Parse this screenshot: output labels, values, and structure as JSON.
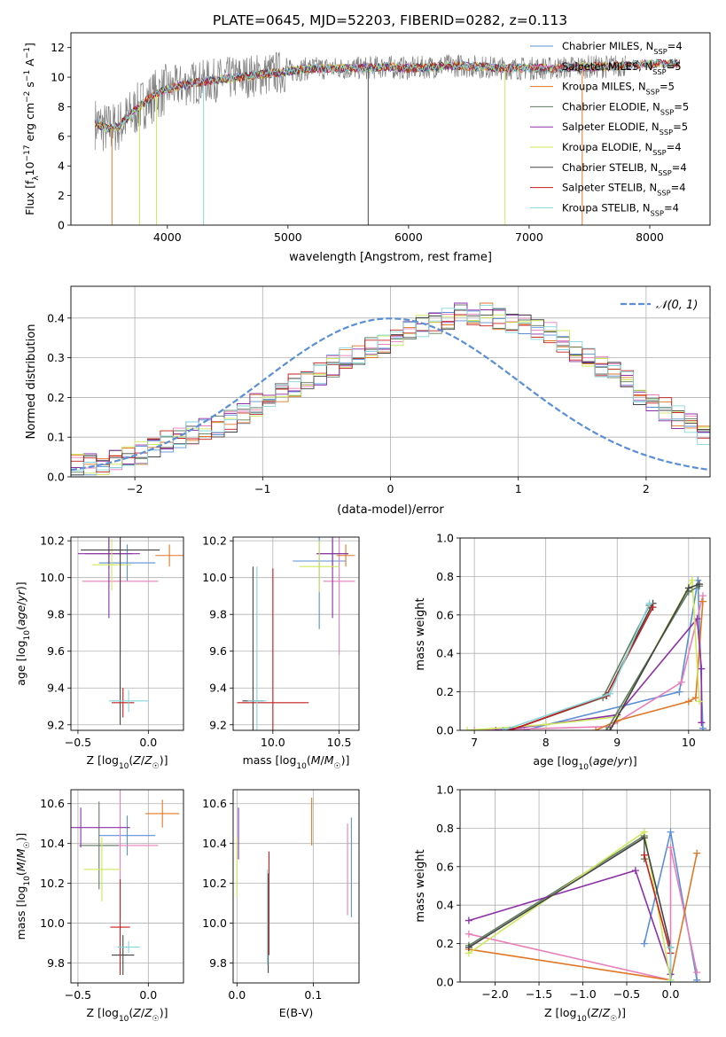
{
  "figure": {
    "title": "PLATE=0645, MJD=52203, FIBERID=0282, z=0.113"
  },
  "colors": {
    "spectrum": "#808080",
    "grid": "#b0b0b0"
  },
  "series": [
    {
      "label": "Chabrier MILES, N_SSP=4",
      "color": "#5b8fd6"
    },
    {
      "label": "Salpeter MILES, N_SSP=5",
      "color": "#e97fb9"
    },
    {
      "label": "Kroupa MILES, N_SSP=5",
      "color": "#e07726"
    },
    {
      "label": "Chabrier ELODIE, N_SSP=5",
      "color": "#5e7d5e"
    },
    {
      "label": "Salpeter ELODIE, N_SSP=5",
      "color": "#8e2fa8"
    },
    {
      "label": "Kroupa ELODIE, N_SSP=4",
      "color": "#cde85a"
    },
    {
      "label": "Chabrier STELIB, N_SSP=4",
      "color": "#444444"
    },
    {
      "label": "Salpeter STELIB, N_SSP=4",
      "color": "#c41e1e"
    },
    {
      "label": "Kroupa STELIB, N_SSP=4",
      "color": "#84d6dc"
    }
  ],
  "chart_data": [
    {
      "id": "spectrum",
      "type": "line",
      "xlabel": "wavelength [Angstrom, rest frame]",
      "ylabel": "Flux [f_λ 10^-17 erg cm^-2 s^-1 A^-1]",
      "xlim": [
        3200,
        8500
      ],
      "ylim": [
        0,
        13
      ],
      "xticks": [
        4000,
        5000,
        6000,
        7000,
        8000
      ],
      "yticks": [
        0,
        2,
        4,
        6,
        8,
        10,
        12
      ],
      "grid": false,
      "legend": "upper right",
      "continuum": {
        "x": [
          3400,
          3500,
          3600,
          3700,
          3800,
          3900,
          4000,
          4200,
          4400,
          4600,
          4800,
          5000,
          5200,
          5400,
          5600,
          5800,
          6000,
          6200,
          6400,
          6600,
          6800,
          7000,
          7200,
          7400,
          7600,
          7800,
          8000,
          8200,
          8250
        ],
        "y": [
          6.9,
          6.5,
          6.7,
          7.5,
          8.2,
          8.8,
          9.2,
          9.6,
          9.8,
          10.0,
          10.2,
          10.4,
          10.6,
          10.6,
          10.6,
          10.7,
          10.6,
          10.7,
          10.8,
          10.7,
          10.6,
          10.6,
          10.6,
          10.7,
          10.7,
          10.8,
          10.9,
          10.9,
          10.9
        ]
      },
      "dips": [
        {
          "x": 3540,
          "series": 2
        },
        {
          "x": 3770,
          "series": 5
        },
        {
          "x": 3910,
          "series": 5
        },
        {
          "x": 4300,
          "series": 8
        },
        {
          "x": 5665,
          "series": 6
        },
        {
          "x": 6800,
          "series": 5
        },
        {
          "x": 7440,
          "series": 2
        }
      ]
    },
    {
      "id": "residuals",
      "type": "step",
      "xlabel": "(data-model)/error",
      "ylabel": "Normed distribution",
      "xlim": [
        -2.5,
        2.5
      ],
      "ylim": [
        0,
        0.48
      ],
      "xticks": [
        -2,
        -1,
        0,
        1,
        2
      ],
      "yticks": [
        0.0,
        0.1,
        0.2,
        0.3,
        0.4
      ],
      "grid": true,
      "legend": "upper right",
      "reference_label": "𝒩(0, 1)",
      "reference_color": "#5b8fd6",
      "bins": {
        "start": -2.5,
        "width": 0.1
      },
      "envelope": [
        0.03,
        0.03,
        0.03,
        0.04,
        0.05,
        0.06,
        0.07,
        0.09,
        0.1,
        0.11,
        0.12,
        0.13,
        0.14,
        0.16,
        0.18,
        0.2,
        0.21,
        0.23,
        0.24,
        0.26,
        0.28,
        0.3,
        0.31,
        0.33,
        0.34,
        0.36,
        0.37,
        0.38,
        0.39,
        0.4,
        0.41,
        0.41,
        0.41,
        0.4,
        0.39,
        0.38,
        0.37,
        0.36,
        0.34,
        0.32,
        0.3,
        0.28,
        0.26,
        0.24,
        0.21,
        0.19,
        0.17,
        0.15,
        0.13,
        0.11,
        0.1
      ]
    },
    {
      "id": "age-vs-Z",
      "type": "scatter",
      "xlabel": "Z [log10(Z/Z☉)]",
      "ylabel": "age [log10(age/yr)]",
      "xlim": [
        -0.55,
        0.25
      ],
      "ylim": [
        9.17,
        10.22
      ],
      "xticks": [
        -0.5,
        0.0
      ],
      "yticks": [
        9.2,
        9.4,
        9.6,
        9.8,
        10.0,
        10.2
      ],
      "grid": true,
      "points": [
        {
          "x": -0.15,
          "y": 10.08,
          "xerr": 0.2,
          "yerr": 0.1,
          "series": 0
        },
        {
          "x": -0.2,
          "y": 9.98,
          "xerr": 0.27,
          "yerr": 0.4,
          "series": 1
        },
        {
          "x": 0.15,
          "y": 10.12,
          "xerr": 0.1,
          "yerr": 0.06,
          "series": 2
        },
        {
          "x": -0.28,
          "y": 10.13,
          "xerr": 0.17,
          "yerr": 0.08,
          "series": 3
        },
        {
          "x": -0.28,
          "y": 10.13,
          "xerr": 0.22,
          "yerr": 0.35,
          "series": 4
        },
        {
          "x": -0.26,
          "y": 10.07,
          "xerr": 0.14,
          "yerr": 0.14,
          "series": 5
        },
        {
          "x": -0.2,
          "y": 10.15,
          "xerr": 0.28,
          "yerr": 0.95,
          "series": 6
        },
        {
          "x": -0.18,
          "y": 9.32,
          "xerr": 0.08,
          "yerr": 0.08,
          "series": 7
        },
        {
          "x": -0.14,
          "y": 9.33,
          "xerr": 0.14,
          "yerr": 0.06,
          "series": 8
        }
      ]
    },
    {
      "id": "age-vs-mass",
      "type": "scatter",
      "xlabel": "mass [log10(M/M☉)]",
      "ylabel": "",
      "xlim": [
        9.7,
        10.65
      ],
      "ylim": [
        9.17,
        10.22
      ],
      "xticks": [
        10.0,
        10.5
      ],
      "yticks": [
        9.2,
        9.4,
        9.6,
        9.8,
        10.0,
        10.2
      ],
      "grid": true,
      "points": [
        {
          "x": 10.35,
          "y": 10.09,
          "xerr": 0.2,
          "yerr": 0.37,
          "series": 0
        },
        {
          "x": 10.5,
          "y": 9.98,
          "xerr": 0.12,
          "yerr": 0.4,
          "series": 1
        },
        {
          "x": 10.55,
          "y": 10.12,
          "xerr": 0.07,
          "yerr": 0.06,
          "series": 2
        },
        {
          "x": 10.45,
          "y": 10.13,
          "xerr": 0.12,
          "yerr": 0.08,
          "series": 3
        },
        {
          "x": 10.45,
          "y": 10.13,
          "xerr": 0.12,
          "yerr": 0.35,
          "series": 4
        },
        {
          "x": 10.35,
          "y": 10.06,
          "xerr": 0.15,
          "yerr": 0.14,
          "series": 5
        },
        {
          "x": 9.85,
          "y": 9.33,
          "xerr": 0.08,
          "yerr": 0.73,
          "series": 6
        },
        {
          "x": 10.0,
          "y": 9.32,
          "xerr": 0.27,
          "yerr": 0.73,
          "series": 7
        },
        {
          "x": 9.88,
          "y": 9.33,
          "xerr": 0.07,
          "yerr": 0.73,
          "series": 8
        }
      ]
    },
    {
      "id": "massweight-vs-age",
      "type": "line",
      "xlabel": "age [log10(age/yr)]",
      "ylabel": "mass weight",
      "xlim": [
        6.8,
        10.3
      ],
      "ylim": [
        0,
        1
      ],
      "xticks": [
        7,
        8,
        9,
        10
      ],
      "yticks": [
        0.0,
        0.2,
        0.4,
        0.6,
        0.8,
        1.0
      ],
      "grid": true,
      "lines": [
        {
          "series": 0,
          "x": [
            7.7,
            9.87,
            10.13,
            10.2
          ],
          "y": [
            0.0,
            0.2,
            0.78,
            0.01
          ]
        },
        {
          "series": 1,
          "x": [
            7.0,
            8.9,
            9.9,
            10.2
          ],
          "y": [
            0.0,
            0.02,
            0.25,
            0.7
          ]
        },
        {
          "series": 2,
          "x": [
            8.7,
            9.0,
            10.0,
            10.1,
            10.2
          ],
          "y": [
            0.0,
            0.05,
            0.15,
            0.17,
            0.67
          ]
        },
        {
          "series": 3,
          "x": [
            7.5,
            8.8,
            9.45
          ],
          "y": [
            0.0,
            0.17,
            0.65
          ]
        },
        {
          "series": 4,
          "x": [
            7.3,
            8.0,
            9.0,
            10.12,
            10.18,
            10.18
          ],
          "y": [
            0.0,
            0.03,
            0.08,
            0.58,
            0.32,
            0.04
          ]
        },
        {
          "series": 5,
          "x": [
            6.9,
            8.0,
            9.0,
            10.05,
            10.15
          ],
          "y": [
            0.0,
            0.03,
            0.07,
            0.78,
            0.15
          ]
        },
        {
          "series": 6,
          "x": [
            7.5,
            8.85,
            9.5
          ],
          "y": [
            0.0,
            0.18,
            0.66
          ]
        },
        {
          "series": 7,
          "x": [
            7.5,
            8.85,
            9.5
          ],
          "y": [
            0.0,
            0.18,
            0.64
          ]
        },
        {
          "series": 8,
          "x": [
            7.4,
            8.9,
            9.45
          ],
          "y": [
            0.0,
            0.19,
            0.66
          ]
        }
      ],
      "extra": [
        {
          "series": 3,
          "x": [
            8.85,
            10.0,
            10.15
          ],
          "y": [
            0.0,
            0.72,
            0.75
          ]
        },
        {
          "series": 6,
          "x": [
            8.9,
            10.0,
            10.15
          ],
          "y": [
            0.0,
            0.74,
            0.76
          ]
        }
      ]
    },
    {
      "id": "mass-vs-Z",
      "type": "scatter",
      "xlabel": "Z [log10(Z/Z☉)]",
      "ylabel": "mass [log10(M/M☉)]",
      "xlim": [
        -0.55,
        0.25
      ],
      "ylim": [
        9.7,
        10.67
      ],
      "xticks": [
        -0.5,
        0.0
      ],
      "yticks": [
        9.8,
        10.0,
        10.2,
        10.4,
        10.6
      ],
      "grid": true,
      "points": [
        {
          "x": -0.15,
          "y": 10.44,
          "xerr": 0.2,
          "yerr": 0.1,
          "series": 0
        },
        {
          "x": -0.2,
          "y": 10.39,
          "xerr": 0.27,
          "yerr": 0.36,
          "series": 1
        },
        {
          "x": 0.1,
          "y": 10.55,
          "xerr": 0.12,
          "yerr": 0.07,
          "series": 2
        },
        {
          "x": -0.35,
          "y": 10.39,
          "xerr": 0.14,
          "yerr": 0.22,
          "series": 3
        },
        {
          "x": -0.48,
          "y": 10.48,
          "xerr": 0.35,
          "yerr": 0.1,
          "series": 4
        },
        {
          "x": -0.33,
          "y": 10.27,
          "xerr": 0.13,
          "yerr": 0.16,
          "series": 5
        },
        {
          "x": -0.18,
          "y": 9.84,
          "xerr": 0.08,
          "yerr": 0.1,
          "series": 6
        },
        {
          "x": -0.2,
          "y": 9.98,
          "xerr": 0.07,
          "yerr": 0.24,
          "series": 7
        },
        {
          "x": -0.14,
          "y": 9.88,
          "xerr": 0.08,
          "yerr": 0.03,
          "series": 8
        }
      ]
    },
    {
      "id": "mass-vs-EBV",
      "type": "scatter",
      "xlabel": "E(B-V)",
      "ylabel": "",
      "xlim": [
        -0.005,
        0.16
      ],
      "ylim": [
        9.7,
        10.67
      ],
      "xticks": [
        0.0,
        0.1
      ],
      "yticks": [
        9.8,
        10.0,
        10.2,
        10.4,
        10.6
      ],
      "grid": true,
      "points": [
        {
          "x": 0.15,
          "y": 10.28,
          "yerr": 0.25,
          "series": 0
        },
        {
          "x": 0.145,
          "y": 10.27,
          "yerr": 0.23,
          "series": 1
        },
        {
          "x": 0.098,
          "y": 10.51,
          "yerr": 0.12,
          "series": 2
        },
        {
          "x": 0.002,
          "y": 10.45,
          "yerr": 0.13,
          "series": 4
        },
        {
          "x": 0.0,
          "y": 10.28,
          "yerr": 0.15,
          "series": 5
        },
        {
          "x": 0.041,
          "y": 10.0,
          "yerr": 0.25,
          "series": 6
        },
        {
          "x": 0.042,
          "y": 10.1,
          "yerr": 0.26,
          "series": 7
        },
        {
          "x": 0.04,
          "y": 10.03,
          "yerr": 0.24,
          "series": 8
        }
      ]
    },
    {
      "id": "massweight-vs-Z",
      "type": "line",
      "xlabel": "Z [log10(Z/Z☉)]",
      "ylabel": "mass weight",
      "xlim": [
        -2.4,
        0.45
      ],
      "ylim": [
        0,
        1
      ],
      "xticks": [
        -2.0,
        -1.5,
        -1.0,
        -0.5,
        0.0
      ],
      "yticks": [
        0.0,
        0.2,
        0.4,
        0.6,
        0.8,
        1.0
      ],
      "grid": true,
      "lines": [
        {
          "series": 0,
          "x": [
            -0.3,
            0.0,
            0.3
          ],
          "y": [
            0.2,
            0.78,
            0.01
          ]
        },
        {
          "series": 1,
          "x": [
            -2.3,
            0.0,
            0.0,
            0.3
          ],
          "y": [
            0.25,
            0.01,
            0.7,
            0.05
          ]
        },
        {
          "series": 2,
          "x": [
            -2.3,
            0.0,
            0.3
          ],
          "y": [
            0.17,
            0.01,
            0.67
          ]
        },
        {
          "series": 3,
          "x": [
            -2.3,
            -0.3,
            -0.3
          ],
          "y": [
            0.19,
            0.76,
            0.64
          ]
        },
        {
          "series": 4,
          "x": [
            -2.3,
            -0.4,
            0.0
          ],
          "y": [
            0.32,
            0.58,
            0.04
          ]
        },
        {
          "series": 5,
          "x": [
            -2.3,
            -0.3,
            0.0
          ],
          "y": [
            0.15,
            0.78,
            0.01
          ]
        },
        {
          "series": 6,
          "x": [
            -2.3,
            -0.3,
            0.0
          ],
          "y": [
            0.18,
            0.75,
            0.18
          ]
        },
        {
          "series": 7,
          "x": [
            -0.3,
            0.0
          ],
          "y": [
            0.66,
            0.15
          ]
        },
        {
          "series": 8,
          "x": [
            0.0,
            0.0
          ],
          "y": [
            0.18,
            0.0
          ]
        }
      ]
    }
  ]
}
